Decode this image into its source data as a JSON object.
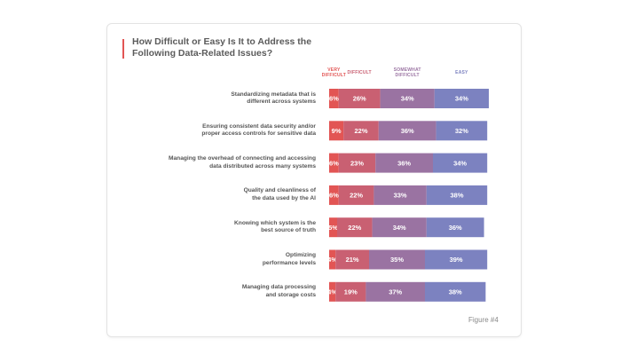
{
  "title": "How Difficult or Easy Is It to Address the Following Data-Related Issues?",
  "figure_label": "Figure #4",
  "colors": {
    "very_difficult": "#e25554",
    "difficult": "#c96072",
    "somewhat_difficult": "#9a73a2",
    "easy": "#7c82c0",
    "accent": "#e25554"
  },
  "chart_data": {
    "type": "bar",
    "orientation": "horizontal",
    "stacked": true,
    "title": "How Difficult or Easy Is It to Address the Following Data-Related Issues?",
    "categories": [
      "Standardizing metadata that is different across systems",
      "Ensuring consistent data security and/or proper access controls for sensitive data",
      "Managing the overhead of connecting and accessing data distributed across many systems",
      "Quality and cleanliness of the data used by the AI",
      "Knowing which system is the best source of truth",
      "Optimizing performance levels",
      "Managing data processing and storage costs"
    ],
    "category_lines": [
      [
        "Standardizing metadata that is",
        "different across systems"
      ],
      [
        "Ensuring consistent data security and/or",
        "proper access controls for sensitive data"
      ],
      [
        "Managing the overhead of connecting and accessing",
        "data distributed across many systems"
      ],
      [
        "Quality and cleanliness of",
        "the data used by the AI"
      ],
      [
        "Knowing which system is the",
        "best source of truth"
      ],
      [
        "Optimizing",
        "performance levels"
      ],
      [
        "Managing data processing",
        "and storage costs"
      ]
    ],
    "series": [
      {
        "name": "VERY DIFFICULT",
        "name_lines": [
          "VERY",
          "DIFFICULT"
        ],
        "values": [
          6,
          9,
          6,
          6,
          5,
          4,
          4
        ]
      },
      {
        "name": "DIFFICULT",
        "name_lines": [
          "DIFFICULT"
        ],
        "values": [
          26,
          22,
          23,
          22,
          22,
          21,
          19
        ]
      },
      {
        "name": "SOMEWHAT DIFFICULT",
        "name_lines": [
          "SOMEWHAT",
          "DIFFICULT"
        ],
        "values": [
          34,
          36,
          36,
          33,
          34,
          35,
          37
        ]
      },
      {
        "name": "EASY",
        "name_lines": [
          "EASY"
        ],
        "values": [
          34,
          32,
          34,
          38,
          36,
          39,
          38
        ]
      }
    ],
    "value_suffix": "%",
    "xlim": [
      0,
      100
    ]
  }
}
